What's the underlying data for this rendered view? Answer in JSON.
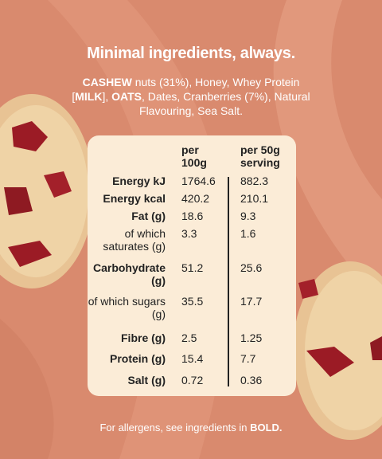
{
  "header": {
    "title": "Minimal ingredients, always."
  },
  "ingredients": {
    "segments": [
      {
        "text": "CASHEW",
        "bold": true
      },
      {
        "text": " nuts (31%), Honey, Whey Protein [",
        "bold": false
      },
      {
        "text": "MILK",
        "bold": true
      },
      {
        "text": "], ",
        "bold": false
      },
      {
        "text": "OATS",
        "bold": true
      },
      {
        "text": ", Dates, Cranberries (7%), Natural Flavouring, Sea Salt.",
        "bold": false
      }
    ]
  },
  "table": {
    "columns": [
      "per 100g",
      "per 50g serving"
    ],
    "rows": [
      {
        "label": "Energy kJ",
        "bold": true,
        "values": [
          "1764.6",
          "882.3"
        ]
      },
      {
        "label": "Energy kcal",
        "bold": true,
        "values": [
          "420.2",
          "210.1"
        ]
      },
      {
        "label": "Fat (g)",
        "bold": true,
        "values": [
          "18.6",
          "9.3"
        ]
      },
      {
        "label": "of which saturates (g)",
        "bold": false,
        "values": [
          "3.3",
          "1.6"
        ]
      },
      {
        "label": "Carbohydrate (g)",
        "bold": true,
        "values": [
          "51.2",
          "25.6"
        ]
      },
      {
        "label": "of which sugars (g)",
        "bold": false,
        "values": [
          "35.5",
          "17.7"
        ]
      },
      {
        "label": "Fibre (g)",
        "bold": true,
        "values": [
          "2.5",
          "1.25"
        ]
      },
      {
        "label": "Protein (g)",
        "bold": true,
        "values": [
          "15.4",
          "7.7"
        ]
      },
      {
        "label": "Salt (g)",
        "bold": true,
        "values": [
          "0.72",
          "0.36"
        ]
      }
    ]
  },
  "footer": {
    "segments": [
      {
        "text": "For allergens, see ingredients in ",
        "bold": false
      },
      {
        "text": "BOLD.",
        "bold": true
      }
    ]
  }
}
